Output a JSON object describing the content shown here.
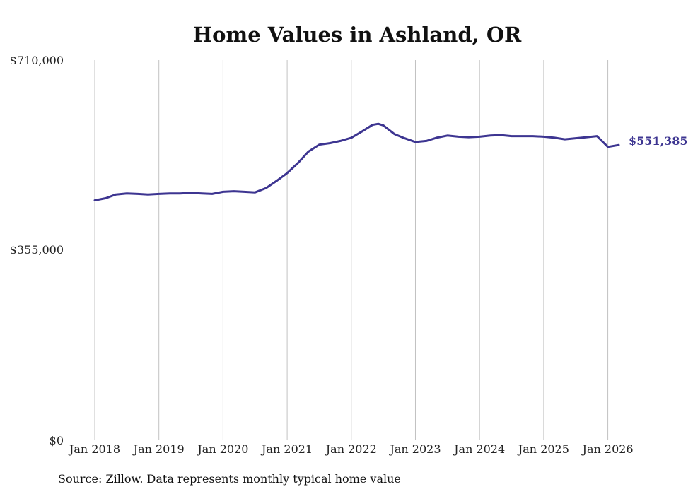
{
  "chart_data": {
    "type": "line",
    "title": "Home Values in Ashland, OR",
    "xlabel": "",
    "ylabel": "",
    "ylim": [
      0,
      710000
    ],
    "y_ticks": [
      "$710,000",
      "$355,000",
      "$0"
    ],
    "y_tick_values": [
      710000,
      355000,
      0
    ],
    "x_ticks": [
      "Jan 2018",
      "Jan 2019",
      "Jan 2020",
      "Jan 2021",
      "Jan 2022",
      "Jan 2023",
      "Jan 2024",
      "Jan 2025",
      "Jan 2026"
    ],
    "x_tick_values": [
      2018,
      2019,
      2020,
      2021,
      2022,
      2023,
      2024,
      2025,
      2026
    ],
    "xlim": [
      2018,
      2026.17
    ],
    "grid": "vertical",
    "series": [
      {
        "name": "Typical home value",
        "color": "#3d3591",
        "x": [
          2018.0,
          2018.17,
          2018.33,
          2018.5,
          2018.67,
          2018.83,
          2019.0,
          2019.17,
          2019.33,
          2019.5,
          2019.67,
          2019.83,
          2020.0,
          2020.17,
          2020.33,
          2020.5,
          2020.67,
          2020.83,
          2021.0,
          2021.17,
          2021.33,
          2021.5,
          2021.67,
          2021.83,
          2022.0,
          2022.17,
          2022.33,
          2022.42,
          2022.5,
          2022.67,
          2022.83,
          2023.0,
          2023.17,
          2023.33,
          2023.5,
          2023.67,
          2023.83,
          2024.0,
          2024.17,
          2024.33,
          2024.5,
          2024.67,
          2024.83,
          2025.0,
          2025.17,
          2025.33,
          2025.5,
          2025.67,
          2025.83,
          2026.0,
          2026.17
        ],
        "values": [
          448000,
          452000,
          459000,
          461000,
          460000,
          459000,
          460000,
          461000,
          461000,
          462000,
          461000,
          460000,
          464000,
          465000,
          464000,
          463000,
          471000,
          484000,
          499000,
          518000,
          539000,
          552000,
          555000,
          559000,
          565000,
          577000,
          589000,
          591000,
          588000,
          572000,
          564000,
          557000,
          559000,
          565000,
          569000,
          567000,
          566000,
          567000,
          569000,
          570000,
          568000,
          568000,
          568000,
          567000,
          565000,
          562000,
          564000,
          566000,
          568000,
          548000,
          551385
        ],
        "end_label": "$551,385"
      }
    ]
  },
  "footer": {
    "source": "Source: Zillow. Data represents monthly typical home value"
  },
  "colors": {
    "line": "#3d3591",
    "grid": "#c2c2c2",
    "text": "#222222"
  }
}
